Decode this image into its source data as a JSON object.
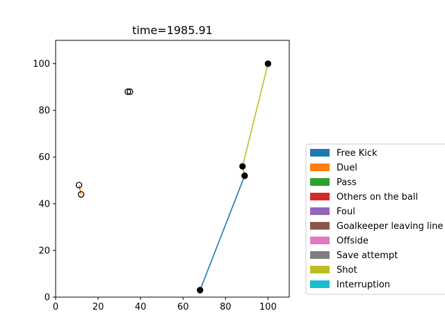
{
  "chart_data": {
    "type": "scatter",
    "title": "time=1985.91",
    "xlabel": "",
    "ylabel": "",
    "xlim": [
      0,
      110
    ],
    "ylim": [
      0,
      110
    ],
    "xticks": [
      0,
      20,
      40,
      60,
      80,
      100
    ],
    "yticks": [
      0,
      20,
      40,
      60,
      80,
      100
    ],
    "grid": false,
    "legend_position": "right",
    "legend": [
      {
        "label": "Free Kick",
        "color": "#1f77b4"
      },
      {
        "label": "Duel",
        "color": "#ff7f0e"
      },
      {
        "label": "Pass",
        "color": "#2ca02c"
      },
      {
        "label": "Others on the ball",
        "color": "#d62728"
      },
      {
        "label": "Foul",
        "color": "#9467bd"
      },
      {
        "label": "Goalkeeper leaving line",
        "color": "#8c564b"
      },
      {
        "label": "Offside",
        "color": "#e377c2"
      },
      {
        "label": "Save attempt",
        "color": "#7f7f7f"
      },
      {
        "label": "Shot",
        "color": "#bcbd22"
      },
      {
        "label": "Interruption",
        "color": "#17becf"
      }
    ],
    "segments": [
      {
        "event": "Free Kick",
        "x": [
          68,
          89
        ],
        "y": [
          3,
          52
        ]
      },
      {
        "event": "Duel",
        "x": [
          11,
          12
        ],
        "y": [
          48,
          44
        ]
      },
      {
        "event": "Duel",
        "x": [
          88,
          89
        ],
        "y": [
          56,
          52
        ]
      },
      {
        "event": "Shot",
        "x": [
          88,
          100
        ],
        "y": [
          56,
          100
        ]
      }
    ],
    "points": [
      {
        "x": 68,
        "y": 3,
        "filled": true
      },
      {
        "x": 89,
        "y": 52,
        "filled": true
      },
      {
        "x": 88,
        "y": 56,
        "filled": true
      },
      {
        "x": 100,
        "y": 100,
        "filled": true
      },
      {
        "x": 11,
        "y": 48,
        "filled": false
      },
      {
        "x": 12,
        "y": 44,
        "filled": false
      },
      {
        "x": 34,
        "y": 88,
        "filled": false
      },
      {
        "x": 35,
        "y": 88,
        "filled": false
      }
    ]
  }
}
